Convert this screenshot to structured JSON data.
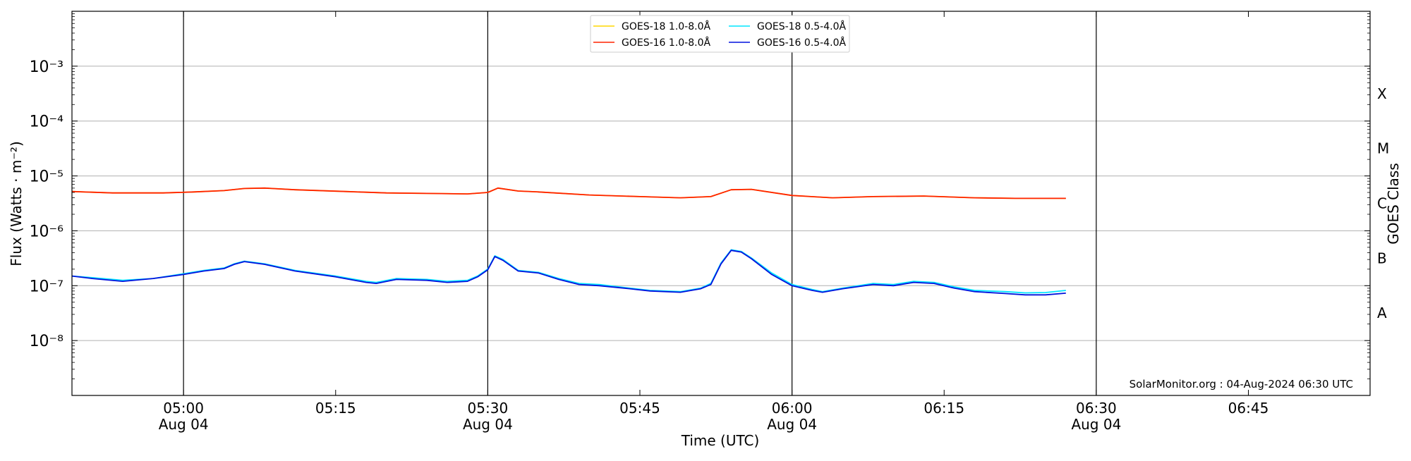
{
  "chart_data": {
    "type": "line",
    "xlabel": "Time (UTC)",
    "ylabel": "Flux (Watts · m⁻²)",
    "right_axis_label": "GOES Class",
    "y_scale": "log",
    "ylim": [
      1e-09,
      0.01
    ],
    "y_ticks": [
      {
        "value": 1e-08,
        "label": "10⁻⁸"
      },
      {
        "value": 1e-07,
        "label": "10⁻⁷"
      },
      {
        "value": 1e-06,
        "label": "10⁻⁶"
      },
      {
        "value": 1e-05,
        "label": "10⁻⁵"
      },
      {
        "value": 0.0001,
        "label": "10⁻⁴"
      },
      {
        "value": 0.001,
        "label": "10⁻³"
      }
    ],
    "xlim": [
      "2024-08-04 04:49",
      "2024-08-04 06:57"
    ],
    "x_ticks": [
      {
        "time": "05:00",
        "label": "05:00",
        "sublabel": "Aug 04"
      },
      {
        "time": "05:15",
        "label": "05:15",
        "sublabel": ""
      },
      {
        "time": "05:30",
        "label": "05:30",
        "sublabel": "Aug 04"
      },
      {
        "time": "05:45",
        "label": "05:45",
        "sublabel": ""
      },
      {
        "time": "06:00",
        "label": "06:00",
        "sublabel": "Aug 04"
      },
      {
        "time": "06:15",
        "label": "06:15",
        "sublabel": ""
      },
      {
        "time": "06:30",
        "label": "06:30",
        "sublabel": "Aug 04"
      },
      {
        "time": "06:45",
        "label": "06:45",
        "sublabel": ""
      }
    ],
    "vertical_lines": [
      "05:00",
      "05:30",
      "06:00",
      "06:30"
    ],
    "goes_classes": [
      {
        "label": "A",
        "value": 3.16e-08
      },
      {
        "label": "B",
        "value": 3.16e-07
      },
      {
        "label": "C",
        "value": 3.16e-06
      },
      {
        "label": "M",
        "value": 3.16e-05
      },
      {
        "label": "X",
        "value": 0.000316
      }
    ],
    "grid": "horizontal at y ticks",
    "legend_position": "top-center",
    "annotation": "SolarMonitor.org : 04-Aug-2024 06:30 UTC",
    "series": [
      {
        "name": "GOES-18 1.0-8.0Å",
        "color": "#ffd700",
        "x": [
          "04:49",
          "04:53",
          "04:58",
          "05:01",
          "05:04",
          "05:06",
          "05:08",
          "05:11",
          "05:16",
          "05:20",
          "05:24",
          "05:28",
          "05:30",
          "05:31",
          "05:33",
          "05:35",
          "05:40",
          "05:45",
          "05:49",
          "05:52",
          "05:54",
          "05:56",
          "06:00",
          "06:04",
          "06:08",
          "06:13",
          "06:18",
          "06:22",
          "06:27"
        ],
        "values": [
          5.2e-06,
          4.9e-06,
          4.9e-06,
          5.1e-06,
          5.4e-06,
          5.9e-06,
          6e-06,
          5.6e-06,
          5.2e-06,
          4.9e-06,
          4.8e-06,
          4.7e-06,
          5e-06,
          6e-06,
          5.3e-06,
          5.1e-06,
          4.5e-06,
          4.2e-06,
          4e-06,
          4.2e-06,
          5.6e-06,
          5.7e-06,
          4.4e-06,
          4e-06,
          4.2e-06,
          4.3e-06,
          4e-06,
          3.9e-06,
          3.9e-06
        ]
      },
      {
        "name": "GOES-16 1.0-8.0Å",
        "color": "#ff2200",
        "x": [
          "04:49",
          "04:53",
          "04:58",
          "05:01",
          "05:04",
          "05:06",
          "05:08",
          "05:11",
          "05:16",
          "05:20",
          "05:24",
          "05:28",
          "05:30",
          "05:31",
          "05:33",
          "05:35",
          "05:40",
          "05:45",
          "05:49",
          "05:52",
          "05:54",
          "05:56",
          "06:00",
          "06:04",
          "06:08",
          "06:13",
          "06:18",
          "06:22",
          "06:27"
        ],
        "values": [
          5.2e-06,
          4.9e-06,
          4.9e-06,
          5.1e-06,
          5.4e-06,
          5.9e-06,
          6e-06,
          5.6e-06,
          5.2e-06,
          4.9e-06,
          4.8e-06,
          4.7e-06,
          5e-06,
          6e-06,
          5.3e-06,
          5.1e-06,
          4.5e-06,
          4.2e-06,
          4e-06,
          4.2e-06,
          5.6e-06,
          5.7e-06,
          4.4e-06,
          4e-06,
          4.2e-06,
          4.3e-06,
          4e-06,
          3.9e-06,
          3.9e-06
        ]
      },
      {
        "name": "GOES-18 0.5-4.0Å",
        "color": "#00e5ff",
        "x": [
          "04:49",
          "04:51",
          "04:54",
          "04:57",
          "05:00",
          "05:02",
          "05:04",
          "05:05",
          "05:06",
          "05:08",
          "05:11",
          "05:15",
          "05:18",
          "05:19",
          "05:21",
          "05:24",
          "05:26",
          "05:28",
          "05:29",
          "05:30",
          "05:30.7",
          "05:31.5",
          "05:33",
          "05:35",
          "05:37",
          "05:39",
          "05:41",
          "05:44",
          "05:46",
          "05:49",
          "05:51",
          "05:52",
          "05:53",
          "05:54",
          "05:55",
          "05:56",
          "05:58",
          "06:00",
          "06:02",
          "06:03",
          "06:05",
          "06:08",
          "06:10",
          "06:12",
          "06:14",
          "06:16",
          "06:18",
          "06:21",
          "06:23",
          "06:25",
          "06:27"
        ],
        "values": [
          1.5e-07,
          1.4e-07,
          1.25e-07,
          1.35e-07,
          1.65e-07,
          1.9e-07,
          2.1e-07,
          2.5e-07,
          2.8e-07,
          2.5e-07,
          1.9e-07,
          1.5e-07,
          1.2e-07,
          1.15e-07,
          1.35e-07,
          1.3e-07,
          1.2e-07,
          1.25e-07,
          1.5e-07,
          2e-07,
          3.5e-07,
          3e-07,
          1.9e-07,
          1.75e-07,
          1.35e-07,
          1.1e-07,
          1.05e-07,
          9e-08,
          8.2e-08,
          7.8e-08,
          9e-08,
          1.1e-07,
          2.6e-07,
          4.5e-07,
          4.2e-07,
          3.2e-07,
          1.7e-07,
          1.05e-07,
          8.5e-08,
          7.8e-08,
          9e-08,
          1.1e-07,
          1.05e-07,
          1.2e-07,
          1.15e-07,
          9.5e-08,
          8.2e-08,
          7.8e-08,
          7.4e-08,
          7.5e-08,
          8.2e-08
        ]
      },
      {
        "name": "GOES-16 0.5-4.0Å",
        "color": "#0011dd",
        "x": [
          "04:49",
          "04:51",
          "04:54",
          "04:57",
          "05:00",
          "05:02",
          "05:04",
          "05:05",
          "05:06",
          "05:08",
          "05:11",
          "05:15",
          "05:18",
          "05:19",
          "05:21",
          "05:24",
          "05:26",
          "05:28",
          "05:29",
          "05:30",
          "05:30.7",
          "05:31.5",
          "05:33",
          "05:35",
          "05:37",
          "05:39",
          "05:41",
          "05:44",
          "05:46",
          "05:49",
          "05:51",
          "05:52",
          "05:53",
          "05:54",
          "05:55",
          "05:56",
          "05:58",
          "06:00",
          "06:02",
          "06:03",
          "06:05",
          "06:08",
          "06:10",
          "06:12",
          "06:14",
          "06:16",
          "06:18",
          "06:21",
          "06:23",
          "06:25",
          "06:27"
        ],
        "values": [
          1.5e-07,
          1.35e-07,
          1.2e-07,
          1.35e-07,
          1.6e-07,
          1.85e-07,
          2.05e-07,
          2.45e-07,
          2.75e-07,
          2.45e-07,
          1.85e-07,
          1.45e-07,
          1.15e-07,
          1.1e-07,
          1.3e-07,
          1.25e-07,
          1.15e-07,
          1.2e-07,
          1.45e-07,
          1.95e-07,
          3.4e-07,
          2.9e-07,
          1.85e-07,
          1.7e-07,
          1.3e-07,
          1.05e-07,
          1e-07,
          8.8e-08,
          8e-08,
          7.6e-08,
          8.8e-08,
          1.05e-07,
          2.5e-07,
          4.4e-07,
          4.1e-07,
          3.1e-07,
          1.6e-07,
          1e-07,
          8.2e-08,
          7.6e-08,
          8.8e-08,
          1.05e-07,
          1e-07,
          1.15e-07,
          1.1e-07,
          9e-08,
          7.8e-08,
          7.2e-08,
          6.8e-08,
          6.8e-08,
          7.3e-08
        ]
      }
    ]
  }
}
